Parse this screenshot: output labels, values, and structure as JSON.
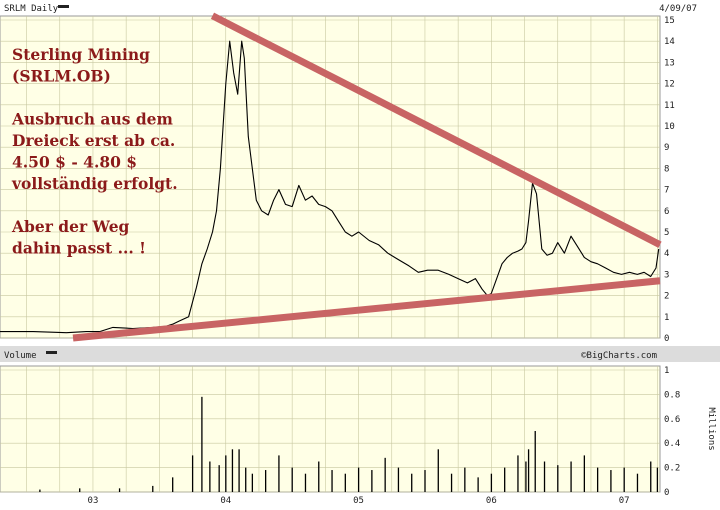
{
  "header": {
    "ticker_label": "SRLM Daily",
    "date": "4/09/07"
  },
  "volume_header": {
    "label": "Volume",
    "watermark": "©BigCharts.com"
  },
  "annotation": {
    "lines": [
      "Sterling Mining",
      "(SRLM.OB)",
      "",
      "Ausbruch aus dem",
      "Dreieck erst ab ca.",
      "4.50 $ - 4.80 $",
      "vollständig erfolgt.",
      "",
      "Aber der Weg",
      "dahin passt ... !"
    ]
  },
  "colors": {
    "plot_bg": "#ffffe6",
    "grid": "#c8c8a0",
    "header_bg": "#dcdcdc",
    "price_line": "#000000",
    "trend_line": "#c86464",
    "annotation": "#8b1a1a"
  },
  "chart_data": [
    {
      "type": "line",
      "title": "SRLM Daily",
      "x_ticks": [
        "03",
        "04",
        "05",
        "06",
        "07"
      ],
      "y_ticks": [
        0,
        1,
        2,
        3,
        4,
        5,
        6,
        7,
        8,
        9,
        10,
        11,
        12,
        13,
        14,
        15
      ],
      "ylim": [
        0,
        15
      ],
      "xlim": [
        2002.3,
        2007.27
      ],
      "grid": true,
      "series": [
        {
          "x": [
            2002.3,
            2002.55,
            2002.8,
            2002.95,
            2003.05,
            2003.15,
            2003.3,
            2003.45,
            2003.55,
            2003.6,
            2003.65,
            2003.72,
            2003.78,
            2003.82,
            2003.86,
            2003.9,
            2003.93,
            2003.96,
            2003.98,
            2004.0,
            2004.03,
            2004.06,
            2004.09,
            2004.12,
            2004.14,
            2004.17,
            2004.2,
            2004.23,
            2004.27,
            2004.32,
            2004.36,
            2004.4,
            2004.45,
            2004.5,
            2004.55,
            2004.6,
            2004.65,
            2004.7,
            2004.75,
            2004.8,
            2004.85,
            2004.9,
            2004.95,
            2005.0,
            2005.08,
            2005.15,
            2005.22,
            2005.3,
            2005.38,
            2005.45,
            2005.52,
            2005.6,
            2005.68,
            2005.75,
            2005.82,
            2005.88,
            2005.93,
            2005.97,
            2006.0,
            2006.04,
            2006.08,
            2006.12,
            2006.16,
            2006.2,
            2006.23,
            2006.26,
            2006.28,
            2006.31,
            2006.34,
            2006.38,
            2006.42,
            2006.46,
            2006.5,
            2006.55,
            2006.6,
            2006.65,
            2006.7,
            2006.75,
            2006.8,
            2006.86,
            2006.92,
            2006.98,
            2007.04,
            2007.1,
            2007.15,
            2007.2,
            2007.24,
            2007.26
          ],
          "y": [
            0.3,
            0.3,
            0.25,
            0.3,
            0.3,
            0.5,
            0.45,
            0.5,
            0.55,
            0.65,
            0.8,
            1.0,
            2.4,
            3.5,
            4.2,
            5.0,
            6.0,
            8.0,
            10.0,
            12.0,
            14.0,
            12.5,
            11.5,
            14.0,
            13.2,
            9.5,
            8.0,
            6.5,
            6.0,
            5.8,
            6.5,
            7.0,
            6.3,
            6.2,
            7.2,
            6.5,
            6.7,
            6.3,
            6.2,
            6.0,
            5.5,
            5.0,
            4.8,
            5.0,
            4.6,
            4.4,
            4.0,
            3.7,
            3.4,
            3.1,
            3.2,
            3.2,
            3.0,
            2.8,
            2.6,
            2.8,
            2.3,
            2.0,
            2.1,
            2.8,
            3.5,
            3.8,
            4.0,
            4.1,
            4.2,
            4.5,
            5.5,
            7.3,
            6.8,
            4.2,
            3.9,
            4.0,
            4.5,
            4.0,
            4.8,
            4.3,
            3.8,
            3.6,
            3.5,
            3.3,
            3.1,
            3.0,
            3.1,
            3.0,
            3.1,
            2.9,
            3.3,
            4.2
          ]
        }
      ],
      "trend_lines": [
        {
          "x": [
            2003.9,
            2007.27
          ],
          "y": [
            15.2,
            4.4
          ]
        },
        {
          "x": [
            2002.85,
            2007.27
          ],
          "y": [
            0.0,
            2.7
          ]
        }
      ]
    },
    {
      "type": "bar",
      "title": "Volume",
      "ylabel": "Millions",
      "y_ticks": [
        0,
        0.2,
        0.4,
        0.6,
        0.8,
        1
      ],
      "ylim": [
        0,
        1
      ],
      "x": [
        2002.6,
        2002.9,
        2003.2,
        2003.45,
        2003.6,
        2003.75,
        2003.82,
        2003.88,
        2003.95,
        2004.0,
        2004.05,
        2004.1,
        2004.15,
        2004.2,
        2004.3,
        2004.4,
        2004.5,
        2004.6,
        2004.7,
        2004.8,
        2004.9,
        2005.0,
        2005.1,
        2005.2,
        2005.3,
        2005.4,
        2005.5,
        2005.6,
        2005.7,
        2005.8,
        2005.9,
        2006.0,
        2006.1,
        2006.2,
        2006.26,
        2006.28,
        2006.33,
        2006.4,
        2006.5,
        2006.6,
        2006.7,
        2006.8,
        2006.9,
        2007.0,
        2007.1,
        2007.2,
        2007.25
      ],
      "values": [
        0.02,
        0.03,
        0.03,
        0.05,
        0.12,
        0.3,
        0.78,
        0.25,
        0.22,
        0.3,
        0.35,
        0.35,
        0.2,
        0.15,
        0.18,
        0.3,
        0.2,
        0.15,
        0.25,
        0.18,
        0.15,
        0.2,
        0.18,
        0.28,
        0.2,
        0.15,
        0.18,
        0.35,
        0.15,
        0.2,
        0.12,
        0.15,
        0.2,
        0.3,
        0.25,
        0.35,
        0.5,
        0.25,
        0.22,
        0.25,
        0.3,
        0.2,
        0.18,
        0.2,
        0.15,
        0.25,
        0.2
      ]
    }
  ]
}
